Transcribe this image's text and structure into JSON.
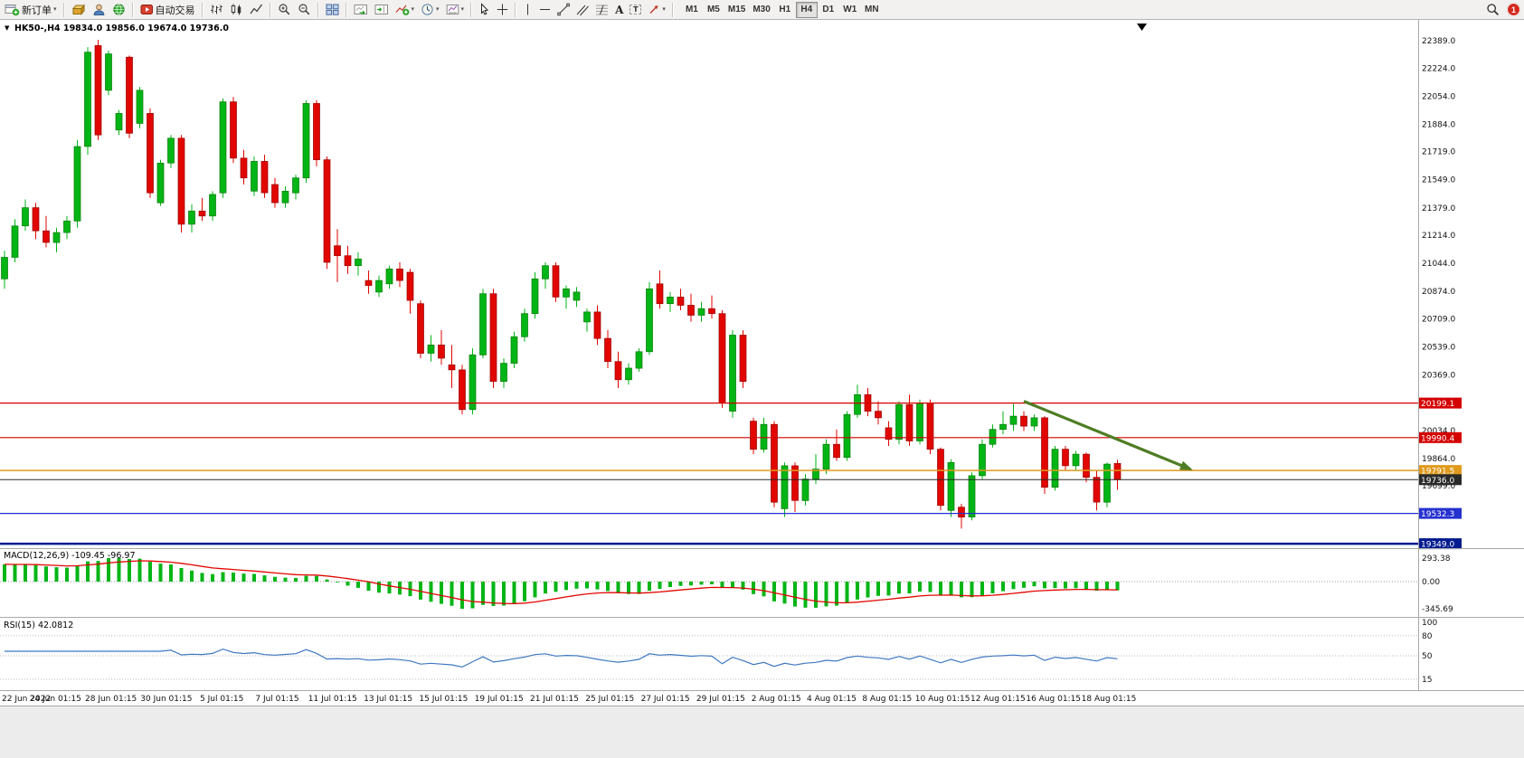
{
  "icons": {
    "caret_down": "▼",
    "chevron_down": "▾"
  },
  "toolbar": {
    "new_order": "新订单",
    "auto_trading": "自动交易",
    "text_tool": "A",
    "label_tool": "T",
    "timeframes": [
      "M1",
      "M5",
      "M15",
      "M30",
      "H1",
      "H4",
      "D1",
      "W1",
      "MN"
    ],
    "active_timeframe": "H4",
    "notification_count": "1"
  },
  "chart_data": [
    {
      "type": "candlestick",
      "symbol": "HK50-",
      "period": "H4",
      "title": "HK50-,H4 19834.0 19856.0 19674.0 19736.0",
      "last_ohlc": {
        "open": "19834.0",
        "high": "19856.0",
        "low": "19674.0",
        "close": "19736.0"
      },
      "ylim": [
        19333,
        22417
      ],
      "yticks": [
        "22389.0",
        "22224.0",
        "22054.0",
        "21884.0",
        "21719.0",
        "21549.0",
        "21379.0",
        "21214.0",
        "21044.0",
        "20874.0",
        "20709.0",
        "20539.0",
        "20369.0",
        "20199.0",
        "20034.0",
        "19864.0",
        "19699.0",
        "19529.0",
        "19364.0"
      ],
      "x_labels": [
        "22 Jun 2022",
        "24 Jun 01:15",
        "28 Jun 01:15",
        "30 Jun 01:15",
        "5 Jul 01:15",
        "7 Jul 01:15",
        "11 Jul 01:15",
        "13 Jul 01:15",
        "15 Jul 01:15",
        "19 Jul 01:15",
        "21 Jul 01:15",
        "25 Jul 01:15",
        "27 Jul 01:15",
        "29 Jul 01:15",
        "2 Aug 01:15",
        "4 Aug 01:15",
        "8 Aug 01:15",
        "10 Aug 01:15",
        "12 Aug 01:15",
        "16 Aug 01:15",
        "18 Aug 01:15"
      ],
      "up_color": "#00b515",
      "down_color": "#e10600",
      "hlines": [
        {
          "price": 20199.1,
          "label": "20199.1",
          "color": "#d40000",
          "width": 1.2
        },
        {
          "price": 19990.4,
          "label": "19990.4",
          "color": "#d40000",
          "width": 1.2
        },
        {
          "price": 19791.5,
          "label": "19791.5",
          "color": "#e09a1e",
          "width": 1.5
        },
        {
          "price": 19736.0,
          "label": "19736.0",
          "color": "#2a2a2a",
          "width": 1
        },
        {
          "price": 19532.3,
          "label": "19532.3",
          "color": "#2531cf",
          "width": 1.2
        },
        {
          "price": 19349.0,
          "label": "19349.0",
          "color": "#001b8f",
          "width": 2.5
        }
      ],
      "arrow": {
        "from_bar": 98,
        "from_price": 20210,
        "to_bar": 114,
        "to_price": 19800,
        "color": "#4e7d24"
      },
      "ohlc": [
        [
          20950,
          21120,
          20890,
          21080
        ],
        [
          21080,
          21310,
          21050,
          21270
        ],
        [
          21270,
          21430,
          21240,
          21380
        ],
        [
          21380,
          21410,
          21190,
          21240
        ],
        [
          21240,
          21330,
          21140,
          21170
        ],
        [
          21170,
          21260,
          21110,
          21230
        ],
        [
          21230,
          21330,
          21190,
          21300
        ],
        [
          21300,
          21790,
          21260,
          21750
        ],
        [
          21750,
          22350,
          21700,
          22320
        ],
        [
          22360,
          22395,
          21790,
          21820
        ],
        [
          22090,
          22330,
          22060,
          22310
        ],
        [
          21850,
          21970,
          21820,
          21950
        ],
        [
          22290,
          22300,
          21800,
          21830
        ],
        [
          21890,
          22110,
          21860,
          22090
        ],
        [
          21950,
          21980,
          21440,
          21470
        ],
        [
          21410,
          21670,
          21390,
          21650
        ],
        [
          21650,
          21820,
          21620,
          21800
        ],
        [
          21800,
          21820,
          21230,
          21280
        ],
        [
          21280,
          21400,
          21230,
          21360
        ],
        [
          21360,
          21440,
          21300,
          21330
        ],
        [
          21330,
          21480,
          21300,
          21460
        ],
        [
          21470,
          22040,
          21440,
          22020
        ],
        [
          22020,
          22050,
          21650,
          21680
        ],
        [
          21680,
          21730,
          21520,
          21560
        ],
        [
          21480,
          21690,
          21450,
          21660
        ],
        [
          21660,
          21700,
          21440,
          21470
        ],
        [
          21520,
          21560,
          21380,
          21410
        ],
        [
          21410,
          21510,
          21380,
          21480
        ],
        [
          21470,
          21580,
          21430,
          21560
        ],
        [
          21560,
          22030,
          21530,
          22010
        ],
        [
          22010,
          22030,
          21630,
          21670
        ],
        [
          21670,
          21690,
          21010,
          21050
        ],
        [
          21150,
          21250,
          20930,
          21090
        ],
        [
          21090,
          21150,
          20980,
          21030
        ],
        [
          21030,
          21110,
          20970,
          21070
        ],
        [
          20940,
          21000,
          20860,
          20910
        ],
        [
          20870,
          20970,
          20840,
          20940
        ],
        [
          20920,
          21030,
          20890,
          21010
        ],
        [
          21010,
          21050,
          20900,
          20940
        ],
        [
          20990,
          21010,
          20740,
          20820
        ],
        [
          20800,
          20820,
          20470,
          20500
        ],
        [
          20500,
          20610,
          20450,
          20550
        ],
        [
          20550,
          20640,
          20430,
          20470
        ],
        [
          20430,
          20550,
          20290,
          20400
        ],
        [
          20400,
          20430,
          20130,
          20160
        ],
        [
          20160,
          20530,
          20130,
          20490
        ],
        [
          20490,
          20890,
          20470,
          20860
        ],
        [
          20860,
          20890,
          20290,
          20330
        ],
        [
          20330,
          20470,
          20290,
          20440
        ],
        [
          20440,
          20630,
          20410,
          20600
        ],
        [
          20600,
          20770,
          20570,
          20740
        ],
        [
          20740,
          20990,
          20710,
          20950
        ],
        [
          20950,
          21050,
          20890,
          21030
        ],
        [
          21030,
          21050,
          20810,
          20840
        ],
        [
          20840,
          20910,
          20770,
          20890
        ],
        [
          20820,
          20900,
          20780,
          20870
        ],
        [
          20690,
          20770,
          20630,
          20750
        ],
        [
          20750,
          20790,
          20550,
          20590
        ],
        [
          20590,
          20640,
          20410,
          20450
        ],
        [
          20450,
          20510,
          20290,
          20340
        ],
        [
          20340,
          20440,
          20310,
          20410
        ],
        [
          20410,
          20530,
          20390,
          20510
        ],
        [
          20510,
          20930,
          20490,
          20890
        ],
        [
          20920,
          21000,
          20770,
          20800
        ],
        [
          20800,
          20870,
          20750,
          20840
        ],
        [
          20840,
          20890,
          20760,
          20790
        ],
        [
          20790,
          20860,
          20690,
          20730
        ],
        [
          20730,
          20810,
          20690,
          20770
        ],
        [
          20770,
          20850,
          20710,
          20740
        ],
        [
          20740,
          20760,
          20170,
          20200
        ],
        [
          20150,
          20640,
          20110,
          20610
        ],
        [
          20610,
          20640,
          20290,
          20330
        ],
        [
          20090,
          20110,
          19890,
          19920
        ],
        [
          19920,
          20110,
          19900,
          20070
        ],
        [
          20070,
          20090,
          19570,
          19600
        ],
        [
          19560,
          19840,
          19510,
          19820
        ],
        [
          19820,
          19840,
          19540,
          19610
        ],
        [
          19610,
          19770,
          19580,
          19740
        ],
        [
          19740,
          19890,
          19710,
          19800
        ],
        [
          19800,
          19980,
          19770,
          19950
        ],
        [
          19950,
          20040,
          19850,
          19870
        ],
        [
          19870,
          20150,
          19850,
          20130
        ],
        [
          20130,
          20310,
          20110,
          20250
        ],
        [
          20250,
          20290,
          20120,
          20150
        ],
        [
          20150,
          20210,
          20070,
          20110
        ],
        [
          20050,
          20090,
          19940,
          19980
        ],
        [
          19980,
          20210,
          19950,
          20190
        ],
        [
          20190,
          20250,
          19940,
          19970
        ],
        [
          19970,
          20220,
          19950,
          20200
        ],
        [
          20200,
          20220,
          19890,
          19920
        ],
        [
          19920,
          19930,
          19550,
          19580
        ],
        [
          19550,
          19860,
          19510,
          19840
        ],
        [
          19570,
          19590,
          19440,
          19510
        ],
        [
          19510,
          19780,
          19490,
          19760
        ],
        [
          19760,
          19980,
          19740,
          19950
        ],
        [
          19950,
          20070,
          19930,
          20040
        ],
        [
          20040,
          20150,
          20010,
          20070
        ],
        [
          20070,
          20195,
          20030,
          20120
        ],
        [
          20120,
          20150,
          20030,
          20060
        ],
        [
          20060,
          20130,
          20030,
          20110
        ],
        [
          20110,
          20120,
          19650,
          19690
        ],
        [
          19690,
          19940,
          19670,
          19920
        ],
        [
          19920,
          19940,
          19790,
          19820
        ],
        [
          19820,
          19910,
          19790,
          19890
        ],
        [
          19890,
          19900,
          19720,
          19750
        ],
        [
          19750,
          19790,
          19550,
          19600
        ],
        [
          19600,
          19840,
          19570,
          19830
        ],
        [
          19834,
          19856,
          19674,
          19736
        ]
      ]
    },
    {
      "type": "macd",
      "label": "MACD(12,26,9) -109.45 -96.97",
      "params": [
        12,
        26,
        9
      ],
      "current_macd": "-109.45",
      "current_signal": "-96.97",
      "yticks": [
        "293.38",
        "0.00",
        "-345.69"
      ],
      "histogram_color": "#00b515",
      "signal_color": "#e10600"
    },
    {
      "type": "rsi",
      "label": "RSI(15) 42.0812",
      "period": 15,
      "current": "42.0812",
      "yticks": [
        "100",
        "80",
        "50",
        "15"
      ],
      "levels": [
        80,
        50,
        15
      ],
      "color": "#3f78c0"
    }
  ]
}
